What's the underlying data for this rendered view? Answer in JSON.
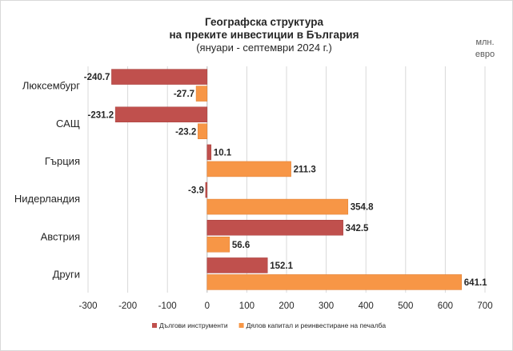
{
  "chart_data": {
    "type": "bar",
    "orientation": "horizontal",
    "title": "Географска структура",
    "title_line2": "на преките инвестиции в България",
    "subtitle": "(януари - септември 2024 г.)",
    "unit": [
      "млн.",
      "евро"
    ],
    "categories": [
      "Люксембург",
      "САЩ",
      "Гърция",
      "Нидерландия",
      "Австрия",
      "Други"
    ],
    "series": [
      {
        "name": "Дългови инструменти",
        "color": "#c0504d",
        "values": [
          -240.7,
          -231.2,
          10.1,
          -3.9,
          342.5,
          152.1
        ],
        "labels": [
          "-240.7",
          "-231.2",
          "10.1",
          "-3.9",
          "342.5",
          "152.1"
        ]
      },
      {
        "name": "Дялов капитал и реинвестиране на печалба",
        "color": "#f79646",
        "values": [
          -27.7,
          -23.2,
          211.3,
          354.8,
          56.6,
          641.1
        ],
        "labels": [
          "-27.7",
          "-23.2",
          "211.3",
          "354.8",
          "56.6",
          "641.1"
        ]
      }
    ],
    "xlim": [
      -300,
      700
    ],
    "xticks": [
      -300,
      -200,
      -100,
      0,
      100,
      200,
      300,
      400,
      500,
      600,
      700
    ],
    "grid": true,
    "legend_position": "bottom"
  }
}
